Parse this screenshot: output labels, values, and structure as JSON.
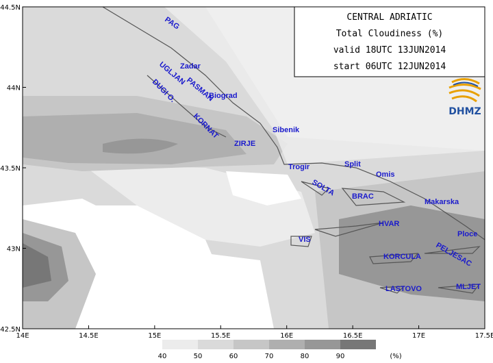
{
  "title_box": {
    "lines": [
      "CENTRAL ADRIATIC",
      "Total Cloudiness (%)",
      "valid 18UTC 13JUN2014",
      "start 06UTC 12JUN2014"
    ],
    "logo_text": "DHMZ"
  },
  "axes": {
    "lon_ticks": [
      {
        "value": 14,
        "label": "14E"
      },
      {
        "value": 14.5,
        "label": "14.5E"
      },
      {
        "value": 15,
        "label": "15E"
      },
      {
        "value": 15.5,
        "label": "15.5E"
      },
      {
        "value": 16,
        "label": "16E"
      },
      {
        "value": 16.5,
        "label": "16.5E"
      },
      {
        "value": 17,
        "label": "17E"
      },
      {
        "value": 17.5,
        "label": "17.5E"
      }
    ],
    "lat_ticks": [
      {
        "value": 44.5,
        "label": "44.5N"
      },
      {
        "value": 44,
        "label": "44N"
      },
      {
        "value": 43.5,
        "label": "43.5N"
      },
      {
        "value": 43,
        "label": "43N"
      },
      {
        "value": 42.5,
        "label": "42.5N"
      }
    ]
  },
  "places": [
    "PAG",
    "Zadar",
    "UGLJAN",
    "PASMAN",
    "Biograd",
    "DUGI O.",
    "KORNAT",
    "Sibenik",
    "ZIRJE",
    "Trogir",
    "Split",
    "Omis",
    "SOLTA",
    "BRAC",
    "Makarska",
    "HVAR",
    "Ploce",
    "VIS",
    "PELJESAC",
    "KORCULA",
    "LASTOVO",
    "MLJET"
  ],
  "colorbar": {
    "levels": [
      40,
      50,
      60,
      70,
      80,
      90
    ],
    "unit": "(%)",
    "colors": [
      "#ffffff",
      "#ececec",
      "#dadada",
      "#c6c6c6",
      "#afafaf",
      "#979797",
      "#777777"
    ]
  }
}
